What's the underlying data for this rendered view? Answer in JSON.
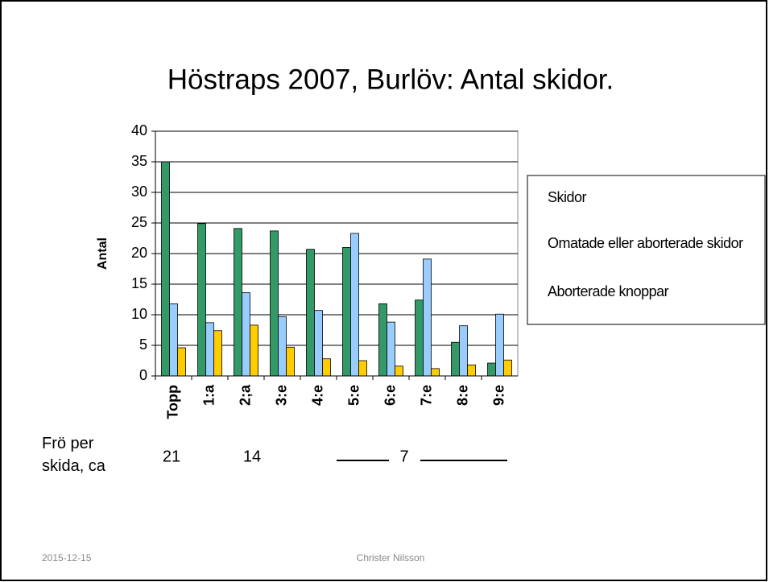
{
  "chart_data": {
    "type": "bar",
    "title": "Höstraps 2007, Burlöv: Antal skidor.",
    "y_label": "Antal",
    "categories": [
      "Topp",
      "1:a",
      "2;a",
      "3:e",
      "4:e",
      "5:e",
      "6:e",
      "7:e",
      "8:e",
      "9:e"
    ],
    "series": [
      {
        "name": "Skidor",
        "color": "#339966",
        "values": [
          35,
          24.9,
          24.1,
          23.7,
          20.7,
          21,
          11.8,
          12.4,
          5.5,
          2.1
        ]
      },
      {
        "name": "Omatade eller aborterade skidor",
        "color": "#99ccff",
        "values": [
          11.8,
          8.7,
          13.6,
          9.7,
          10.7,
          23.3,
          8.8,
          19.1,
          8.2,
          10.1
        ]
      },
      {
        "name": "Aborterade knoppar",
        "color": "#ffcc00",
        "values": [
          4.6,
          7.4,
          8.3,
          4.7,
          2.8,
          2.5,
          1.6,
          1.2,
          1.8,
          2.6
        ]
      }
    ],
    "ylim": [
      0,
      40
    ],
    "yticks": [
      0,
      5,
      10,
      15,
      20,
      25,
      30,
      35,
      40
    ],
    "grid": true,
    "legend": "right"
  },
  "seed_note": {
    "label": "Frö per skida, ca",
    "values": [
      21,
      14,
      7
    ]
  },
  "footer": {
    "date": "2015-12-15",
    "author": "Christer Nilsson"
  }
}
